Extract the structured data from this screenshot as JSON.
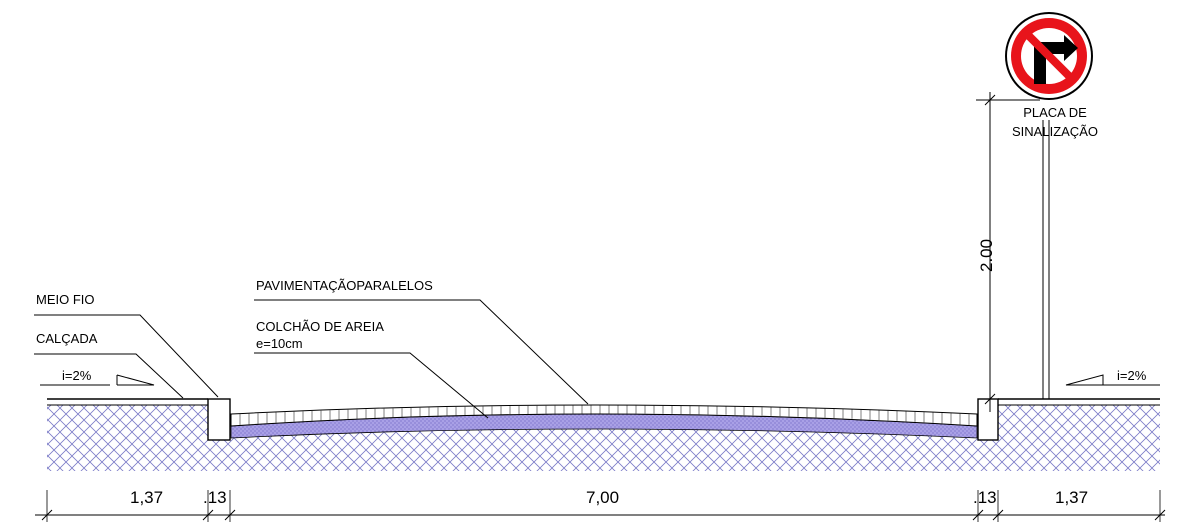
{
  "labels": {
    "meio_fio": "MEIO FIO",
    "calcada": "CALÇADA",
    "pavimentacao": "PAVIMENTAÇÃOPARALELOS",
    "colchao": "COLCHÃO DE AREIA",
    "espessura": "e=10cm",
    "placa_line1": "PLACA DE",
    "placa_line2": "SINALIZAÇÃO",
    "slope_left": "i=2%",
    "slope_right": "i=2%",
    "height_dim": "2.00"
  },
  "dimensions": {
    "sidewalk_left": "1,37",
    "curb_left": ".13",
    "road": "7,00",
    "curb_right": ".13",
    "sidewalk_right": "1,37"
  },
  "sign": {
    "type": "no-right-turn",
    "ring_color": "#e8141b",
    "arrow_color": "#000000"
  },
  "colors": {
    "soil_hatch": "#7c7cc8",
    "sand_fill": "#a9a0e6"
  }
}
